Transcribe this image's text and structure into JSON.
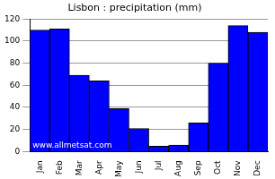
{
  "chart_data": {
    "type": "bar",
    "title": "Lisbon : precipitation (mm)",
    "categories": [
      "Jan",
      "Feb",
      "Mar",
      "Apr",
      "May",
      "Jun",
      "Jul",
      "Aug",
      "Sep",
      "Oct",
      "Nov",
      "Dec"
    ],
    "values": [
      110,
      111,
      69,
      64,
      39,
      21,
      5,
      6,
      26,
      80,
      114,
      108
    ],
    "color": "#0000ff",
    "ylim": [
      0,
      120
    ],
    "yticks": [
      0,
      20,
      40,
      60,
      80,
      100,
      120
    ],
    "grid": true,
    "annotations": [
      "www.allmetsat.com"
    ]
  }
}
